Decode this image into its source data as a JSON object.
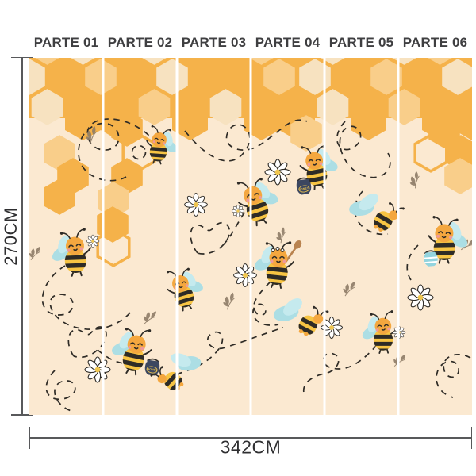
{
  "panels": {
    "labels": [
      "PARTE 01",
      "PARTE 02",
      "PARTE 03",
      "PARTE 04",
      "PARTE 05",
      "PARTE 06"
    ],
    "count": 6
  },
  "dimensions": {
    "height": "270CM",
    "width": "342CM"
  },
  "decor": {
    "honey_pot_label": "HONEY"
  },
  "colors": {
    "page_bg": "#ffffff",
    "mural_bg": "#fbe9d1",
    "hex_orange": "#f5b24a",
    "hex_light": "#f9ce8a",
    "hex_pale": "#f7e2c0",
    "ink": "#2e2b26",
    "bee_body": "#f7c443",
    "bee_head": "#f4a73f",
    "wing": "#acdee4",
    "wing2": "#c5eaee",
    "blush": "#ef9a9a",
    "pot_navy": "#3c4760",
    "pot_blue": "#93d4de",
    "gold": "#f0c64f",
    "spoon": "#b9834f",
    "leaf": "#8d7b66",
    "divider": "#ffffff",
    "measure": "#58595b",
    "measure_text": "#2f2f31",
    "label_text": "#3f3f41"
  }
}
